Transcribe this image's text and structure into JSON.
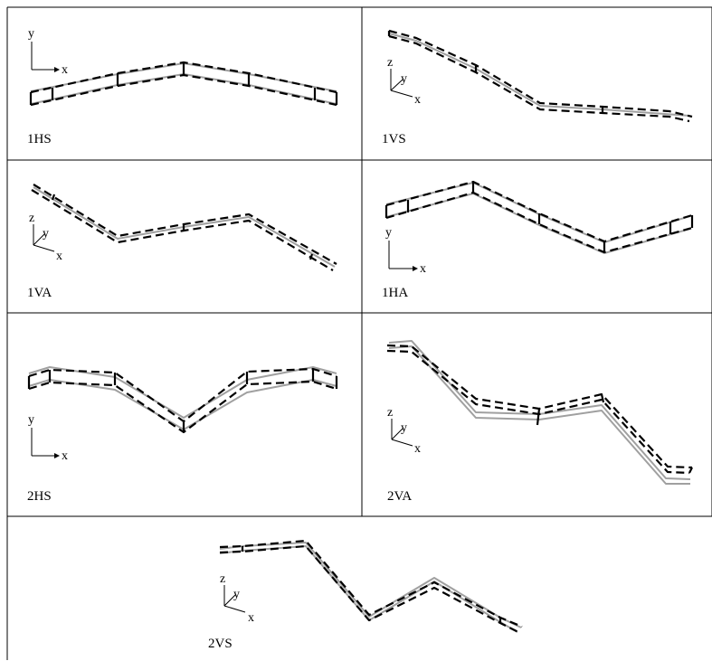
{
  "panels": [
    {
      "label": "1HS",
      "axes": [
        "y",
        "x"
      ]
    },
    {
      "label": "1VS",
      "axes": [
        "z",
        "y",
        "x"
      ]
    },
    {
      "label": "1VA",
      "axes": [
        "z",
        "y",
        "x"
      ]
    },
    {
      "label": "1HA",
      "axes": [
        "y",
        "x"
      ]
    },
    {
      "label": "2HS",
      "axes": [
        "y",
        "x"
      ]
    },
    {
      "label": "2VA",
      "axes": [
        "z",
        "y",
        "x"
      ]
    },
    {
      "label": "2VS",
      "axes": [
        "z",
        "y",
        "x"
      ]
    }
  ],
  "colors": {
    "undeformed": "#a0a0a0",
    "mode_shape": "#000000",
    "grid": "#000000"
  }
}
